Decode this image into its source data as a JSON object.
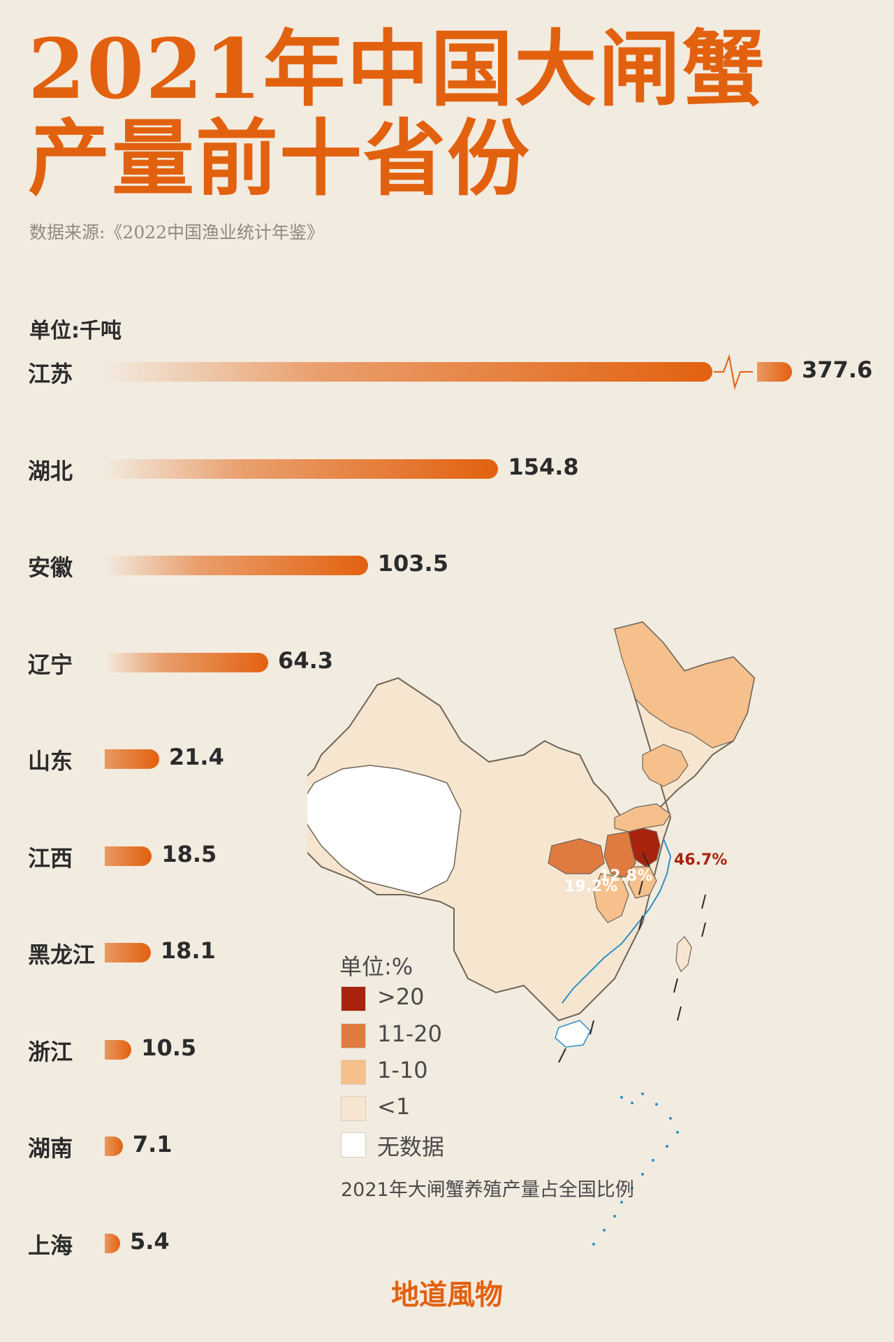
{
  "title_line1": "2021年中国大闸蟹",
  "title_line2": "产量前十省份",
  "source": "数据来源:《2022中国渔业统计年鉴》",
  "unit_label": "单位:千吨",
  "brand": "地道風物",
  "chart_data": {
    "type": "bar",
    "orientation": "horizontal",
    "ylabel": "单位:千吨",
    "categories": [
      "江苏",
      "湖北",
      "安徽",
      "辽宁",
      "山东",
      "江西",
      "黑龙江",
      "浙江",
      "湖南",
      "上海"
    ],
    "values": [
      377.6,
      154.8,
      103.5,
      64.3,
      21.4,
      18.5,
      18.1,
      10.5,
      7.1,
      5.4
    ],
    "value_labels": [
      "377.6",
      "154.8",
      "103.5",
      "64.3",
      "21.4",
      "18.5",
      "18.1",
      "10.5",
      "7.1",
      "5.4"
    ],
    "axis_break_on_first_bar": true,
    "bar_color": "#e2610f"
  },
  "map": {
    "legend_title": "单位:%",
    "legend": [
      {
        "label": ">20",
        "color": "#a8230e"
      },
      {
        "label": "11-20",
        "color": "#e07b40"
      },
      {
        "label": "1-10",
        "color": "#f5c08c"
      },
      {
        "label": "<1",
        "color": "#f7e6cf"
      },
      {
        "label": "无数据",
        "color": "#ffffff"
      }
    ],
    "caption": "2021年大闸蟹养殖产量占全国比例",
    "annotations": [
      {
        "province": "江苏",
        "label": "46.7%",
        "color": "#a8230e"
      },
      {
        "province": "湖北",
        "label": "19.2%",
        "color": "#ffffff"
      },
      {
        "province": "安徽",
        "label": "12.8%",
        "color": "#ffffff"
      }
    ]
  }
}
